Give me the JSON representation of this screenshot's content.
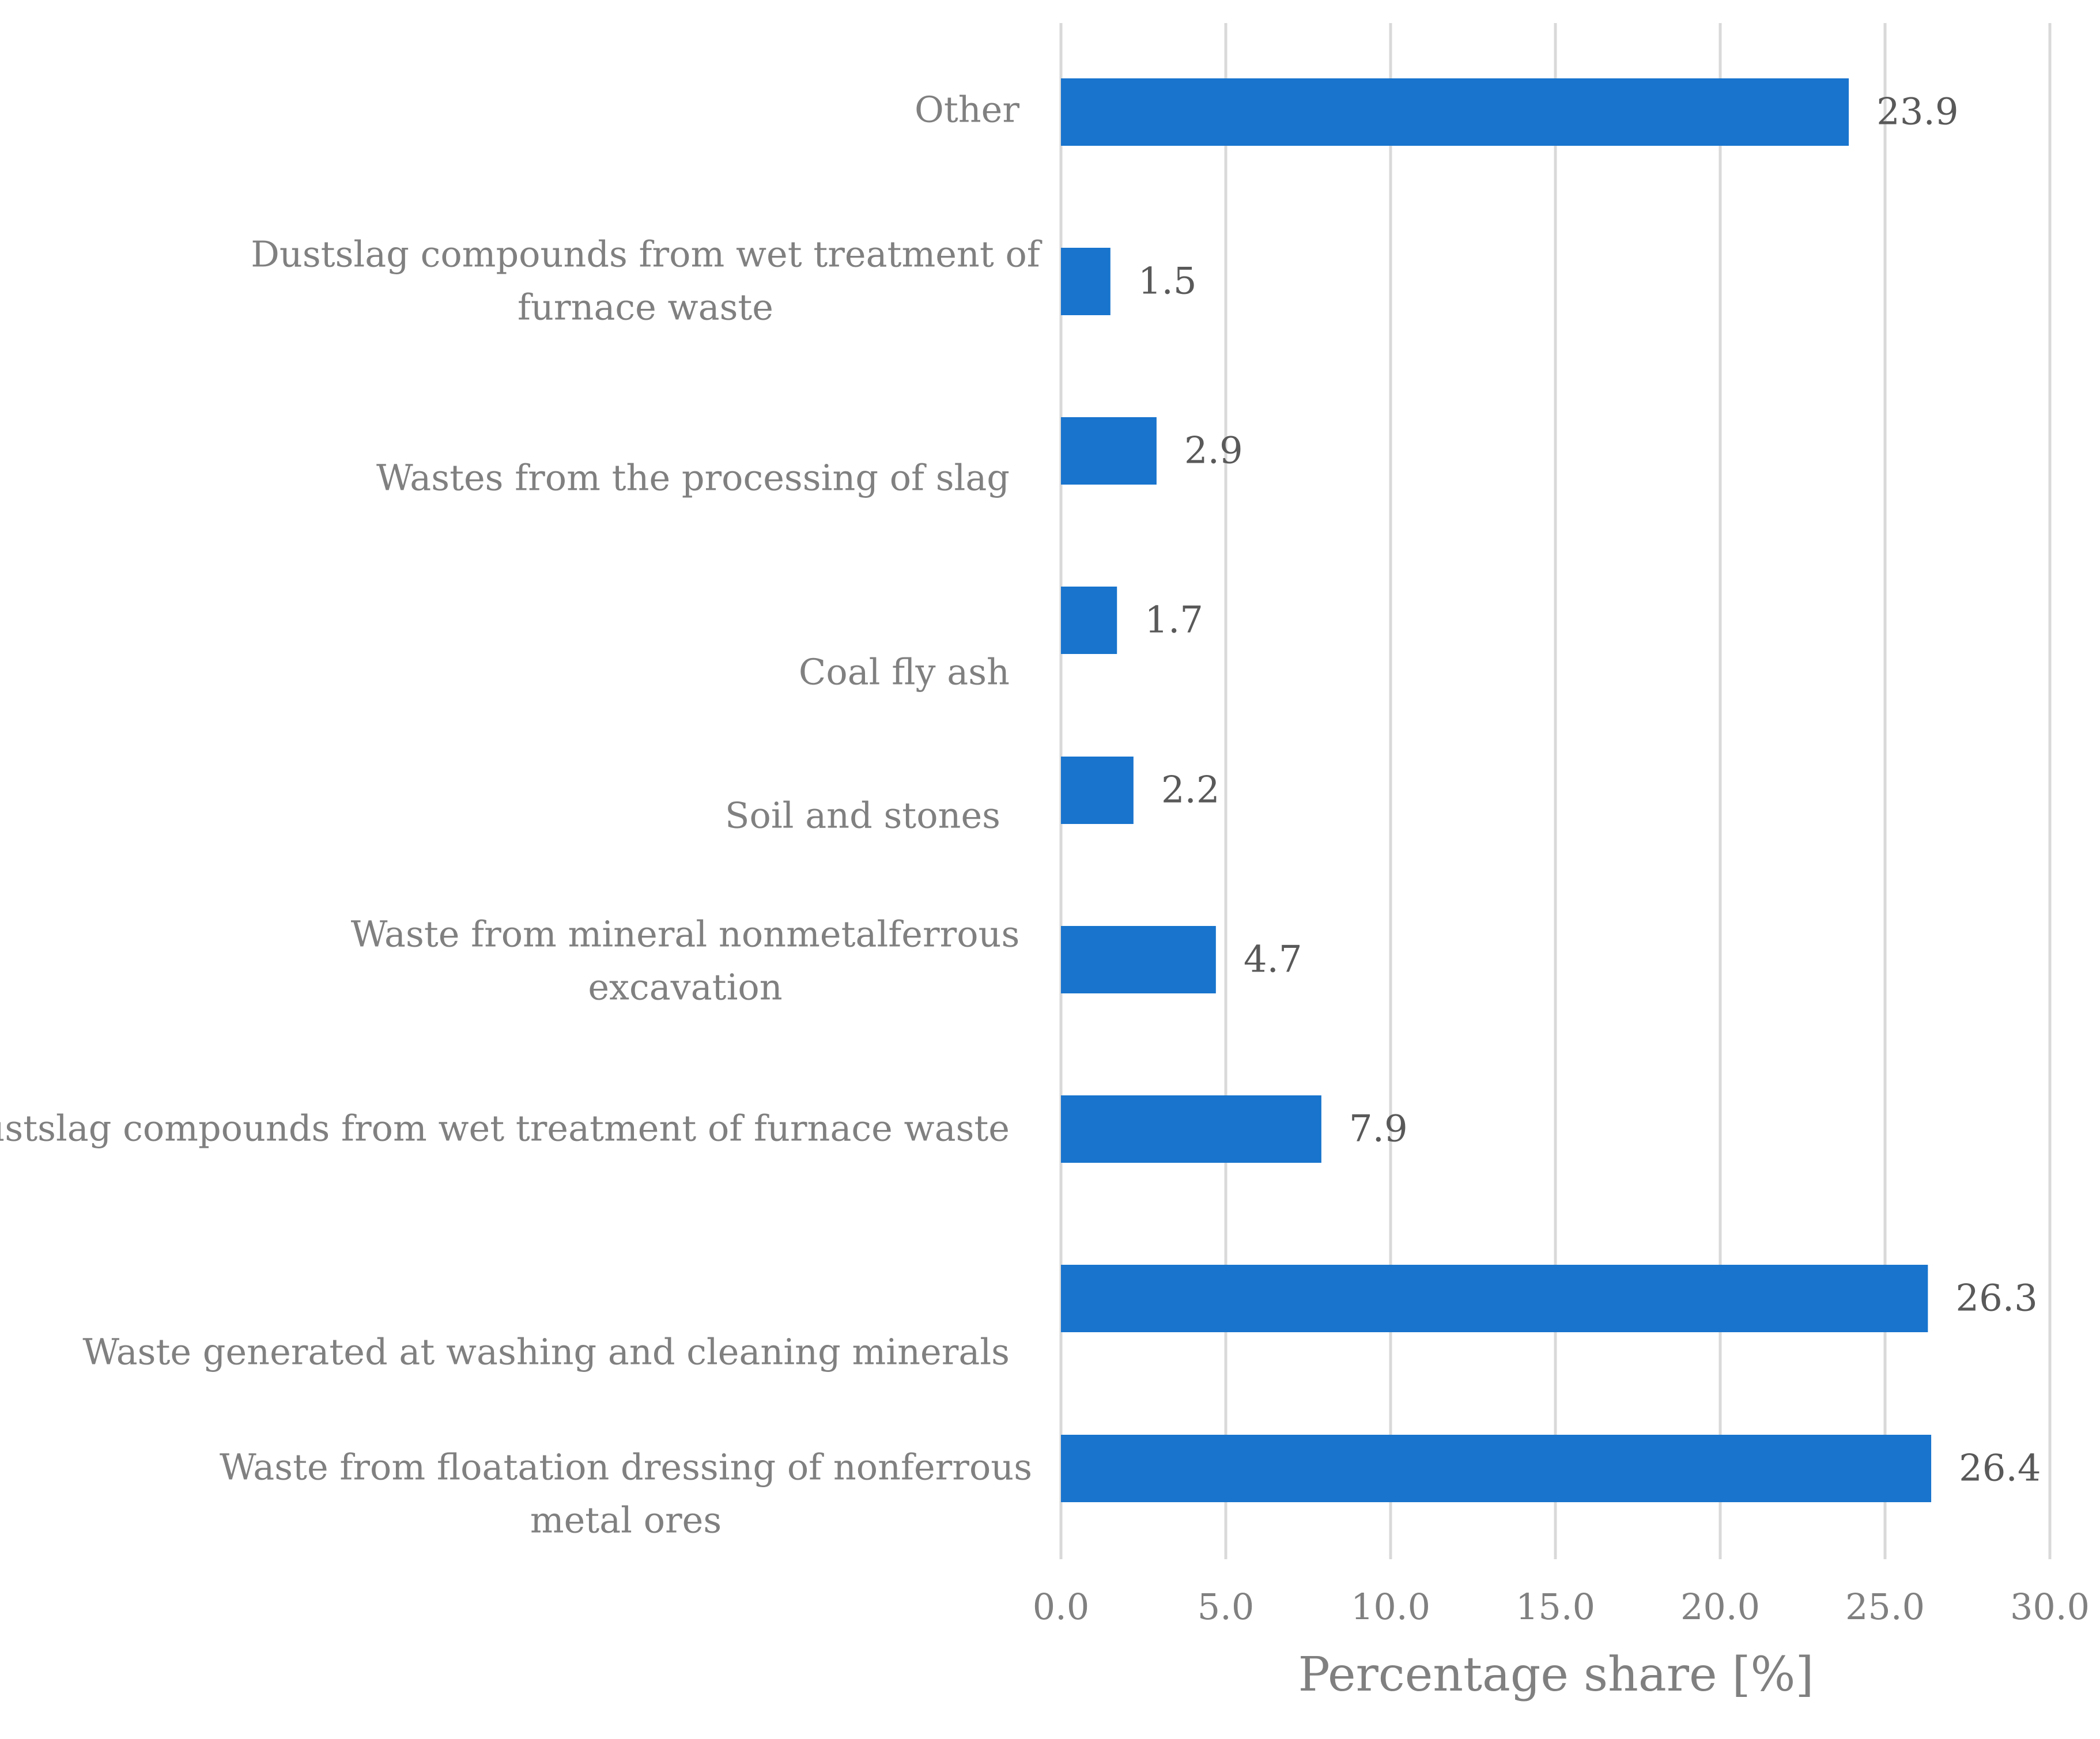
{
  "chart_data": {
    "type": "bar",
    "orientation": "horizontal",
    "title": "",
    "xlabel": "Percentage share [%]",
    "ylabel": "",
    "xlim": [
      0,
      30
    ],
    "x_ticks": [
      "0.0",
      "5.0",
      "10.0",
      "15.0",
      "20.0",
      "25.0",
      "30.0"
    ],
    "grid": "vertical",
    "legend": "none",
    "categories": [
      {
        "lines": [
          "Other"
        ],
        "value": 23.9,
        "value_label": "23.9"
      },
      {
        "lines": [
          "Dustslag compounds from wet treatment of",
          "furnace waste"
        ],
        "value": 1.5,
        "value_label": "1.5"
      },
      {
        "lines": [
          "Wastes from the processing of slag"
        ],
        "value": 2.9,
        "value_label": "2.9"
      },
      {
        "lines": [
          "Coal fly ash"
        ],
        "value": 1.7,
        "value_label": "1.7"
      },
      {
        "lines": [
          "Soil and stones"
        ],
        "value": 2.2,
        "value_label": "2.2"
      },
      {
        "lines": [
          "Waste from mineral nonmetalferrous",
          "excavation"
        ],
        "value": 4.7,
        "value_label": "4.7"
      },
      {
        "lines": [
          "Dustslag compounds from wet treatment of furnace waste"
        ],
        "value": 7.9,
        "value_label": "7.9"
      },
      {
        "lines": [
          "Waste generated at washing and cleaning minerals"
        ],
        "value": 26.3,
        "value_label": "26.3"
      },
      {
        "lines": [
          "Waste from floatation dressing of nonferrous",
          "metal ores"
        ],
        "value": 26.4,
        "value_label": "26.4"
      }
    ],
    "colors": {
      "bar": "#1874CD",
      "grid": "#D9D9D9"
    }
  }
}
